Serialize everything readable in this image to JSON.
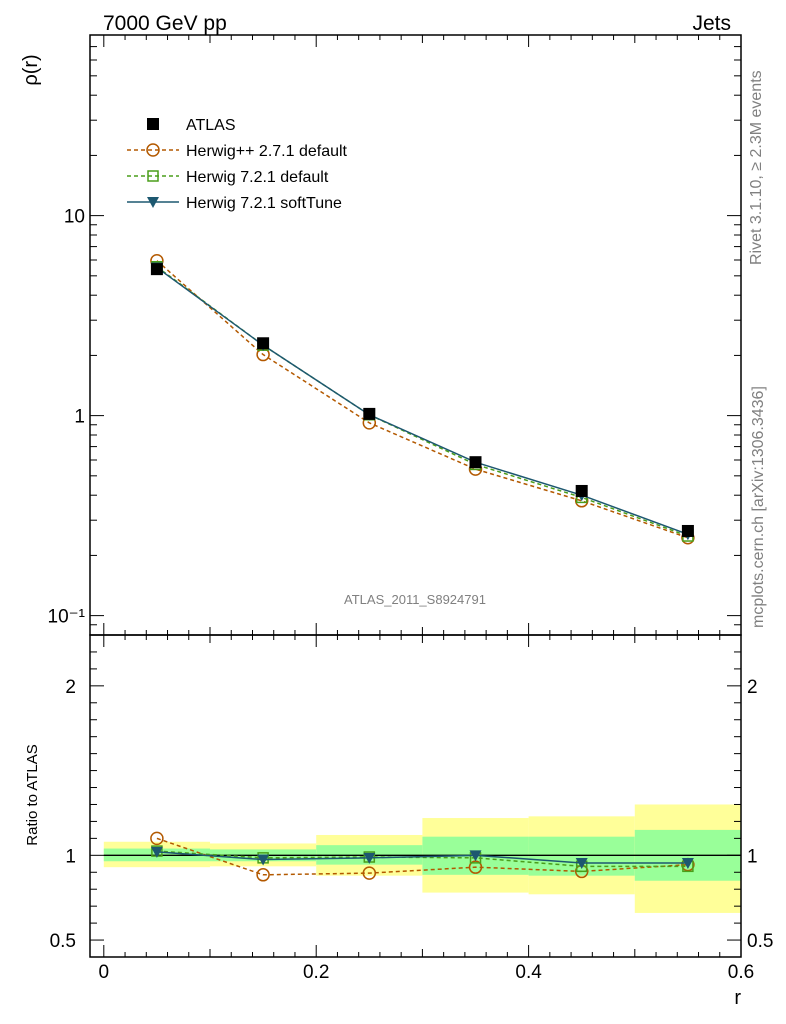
{
  "header": {
    "left": "7000 GeV pp",
    "right": "Jets"
  },
  "side_text": {
    "rivet": "Rivet 3.1.10, ≥ 2.3M events",
    "mcplots": "mcplots.cern.ch [arXiv:1306.3436]"
  },
  "watermark": "ATLAS_2011_S8924791",
  "chart_data": [
    {
      "type": "line",
      "ylabel": "ρ(r)",
      "xlabel": "",
      "yscale": "log",
      "ylim": [
        0.08,
        80
      ],
      "xlim": [
        -0.013,
        0.6
      ],
      "y_tick_labels": [
        "10⁻¹",
        "1",
        "10"
      ],
      "legend_position": "top-left",
      "x": [
        0.05,
        0.15,
        0.25,
        0.35,
        0.45,
        0.55
      ],
      "series": [
        {
          "name": "ATLAS",
          "marker": "filled-square",
          "line": "none",
          "color": "#000000",
          "values": [
            5.4,
            2.3,
            1.02,
            0.585,
            0.42,
            0.265
          ]
        },
        {
          "name": "Herwig++ 2.7.1 default",
          "marker": "open-circle",
          "line": "dashed",
          "color": "#b35900",
          "values": [
            5.95,
            2.02,
            0.92,
            0.54,
            0.375,
            0.245
          ]
        },
        {
          "name": "Herwig 7.2.1 default",
          "marker": "open-square",
          "line": "dashed",
          "color": "#4a9e1a",
          "values": [
            5.55,
            2.25,
            1.01,
            0.57,
            0.39,
            0.25
          ]
        },
        {
          "name": "Herwig 7.2.1 softTune",
          "marker": "filled-triangle-down",
          "line": "solid",
          "color": "#1d5870",
          "values": [
            5.5,
            2.25,
            1.01,
            0.585,
            0.4,
            0.255
          ]
        }
      ]
    },
    {
      "type": "line",
      "xlabel": "r",
      "ylabel": "Ratio to ATLAS",
      "ylim": [
        0.4,
        2.3
      ],
      "xlim": [
        -0.013,
        0.6
      ],
      "x_tick_labels": [
        "0",
        "0.2",
        "0.4",
        "0.6"
      ],
      "y_tick_labels": [
        "0.5",
        "1",
        "2"
      ],
      "bands": {
        "edges": [
          0.0,
          0.1,
          0.2,
          0.3,
          0.4,
          0.5,
          0.6
        ],
        "yellow_low": [
          0.93,
          0.935,
          0.88,
          0.78,
          0.77,
          0.66
        ],
        "yellow_high": [
          1.08,
          1.07,
          1.12,
          1.22,
          1.23,
          1.3
        ],
        "green_low": [
          0.965,
          0.965,
          0.945,
          0.885,
          0.88,
          0.85
        ],
        "green_high": [
          1.04,
          1.035,
          1.06,
          1.11,
          1.11,
          1.15
        ],
        "yellow_color": "#ffff99",
        "green_color": "#99ff99"
      },
      "x": [
        0.05,
        0.15,
        0.25,
        0.35,
        0.45,
        0.55
      ],
      "series": [
        {
          "name": "Herwig++ 2.7.1 default",
          "marker": "open-circle",
          "line": "dashed",
          "color": "#b35900",
          "values": [
            1.1,
            0.885,
            0.895,
            0.93,
            0.905,
            0.945
          ]
        },
        {
          "name": "Herwig 7.2.1 default",
          "marker": "open-square",
          "line": "dashed",
          "color": "#4a9e1a",
          "values": [
            1.025,
            0.985,
            0.99,
            0.985,
            0.935,
            0.935
          ]
        },
        {
          "name": "Herwig 7.2.1 softTune",
          "marker": "filled-triangle-down",
          "line": "solid",
          "color": "#1d5870",
          "values": [
            1.02,
            0.975,
            0.985,
            1.0,
            0.955,
            0.955
          ]
        }
      ]
    }
  ]
}
